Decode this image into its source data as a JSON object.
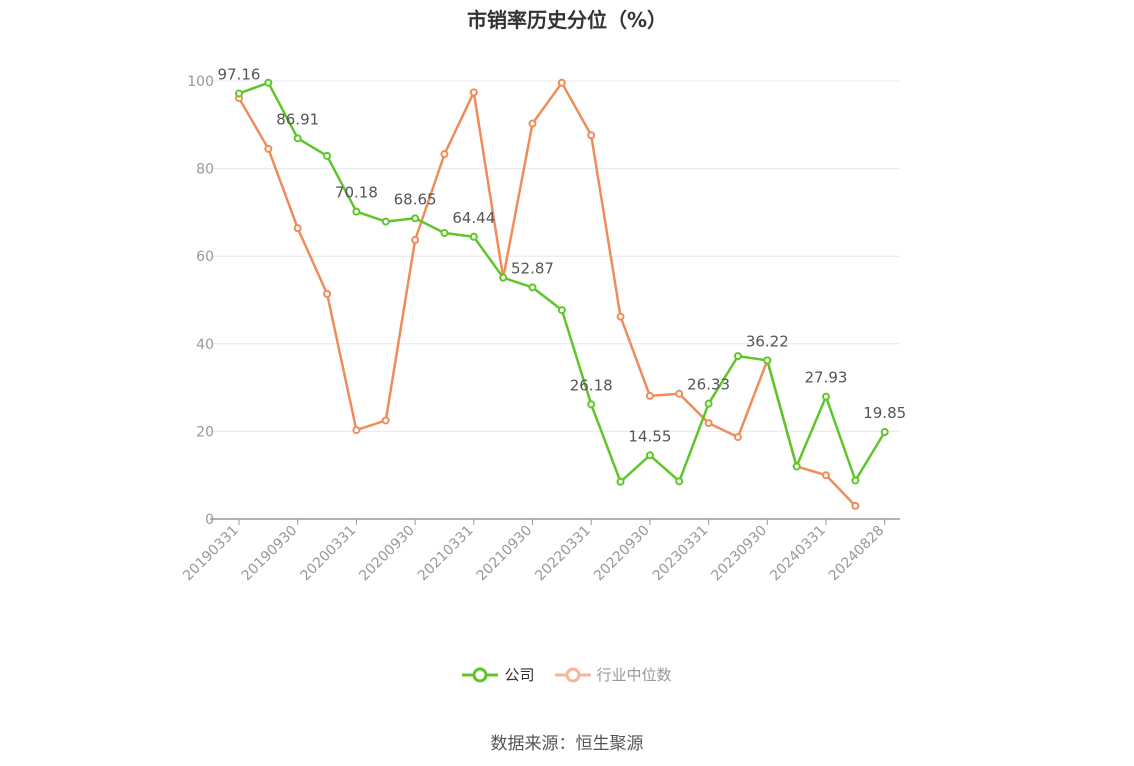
{
  "chart_data": {
    "type": "line",
    "title": "市销率历史分位（%）",
    "ylim": [
      0,
      100
    ],
    "yticks": [
      0,
      20,
      40,
      60,
      80,
      100
    ],
    "x_tick_labels": [
      "20190331",
      "20190930",
      "20200331",
      "20200930",
      "20210331",
      "20210930",
      "20220331",
      "20220930",
      "20230331",
      "20230930",
      "20240331",
      "20240828"
    ],
    "x": [
      "20190331",
      "20190628",
      "20190930",
      "20191231",
      "20200331",
      "20200630",
      "20200930",
      "20201231",
      "20210331",
      "20210630",
      "20210930",
      "20211231",
      "20220331",
      "20220630",
      "20220930",
      "20221230",
      "20230331",
      "20230630",
      "20230930",
      "20231229",
      "20240331",
      "20240628",
      "20240828"
    ],
    "grid": true,
    "legend_position": "bottom",
    "series": [
      {
        "name": "公司",
        "color": "#5ec62a",
        "values": [
          97.16,
          99.6,
          86.91,
          82.9,
          70.18,
          67.9,
          68.65,
          65.3,
          64.44,
          55.1,
          52.87,
          47.7,
          26.18,
          8.5,
          14.55,
          8.6,
          26.33,
          37.2,
          36.22,
          12.0,
          27.93,
          8.8,
          19.85
        ],
        "labels": [
          "97.16",
          null,
          "86.91",
          null,
          "70.18",
          null,
          "68.65",
          null,
          "64.44",
          null,
          "52.87",
          null,
          "26.18",
          null,
          "14.55",
          null,
          "26.33",
          null,
          "36.22",
          null,
          "27.93",
          null,
          "19.85"
        ]
      },
      {
        "name": "行业中位数",
        "color": "#f08c5a",
        "values": [
          96.1,
          84.5,
          66.4,
          51.4,
          20.3,
          22.5,
          63.7,
          83.3,
          97.4,
          55.1,
          90.3,
          99.6,
          87.6,
          46.2,
          28.1,
          28.6,
          21.9,
          18.7,
          36.2,
          12.0,
          10.0,
          3.0,
          null
        ]
      }
    ]
  },
  "legend": {
    "company_label": "公司",
    "industry_label": "行业中位数",
    "company_color": "#5ec62a",
    "industry_color": "#f7b69a"
  },
  "footer": {
    "source": "数据来源：恒生聚源"
  }
}
